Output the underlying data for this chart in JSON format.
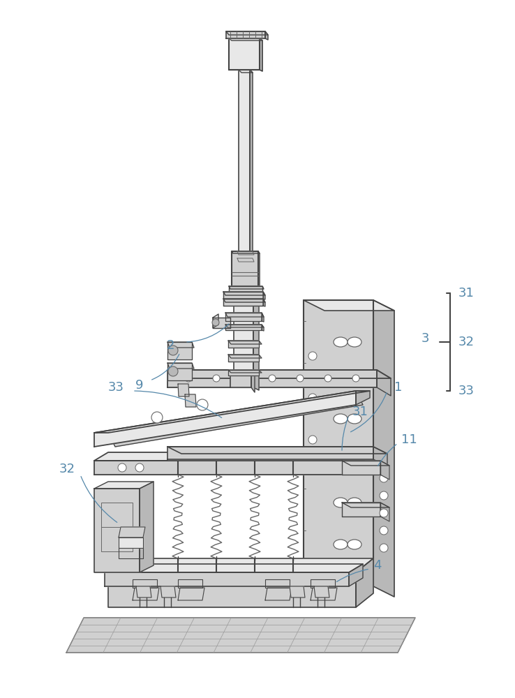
{
  "bg_color": "#ffffff",
  "line_color": "#999999",
  "dark_line": "#444444",
  "mid_line": "#666666",
  "label_color": "#5588aa",
  "figsize": [
    7.38,
    10.0
  ],
  "dpi": 100,
  "gray_light": "#e8e8e8",
  "gray_mid": "#d0d0d0",
  "gray_dark": "#b8b8b8",
  "white": "#ffffff"
}
